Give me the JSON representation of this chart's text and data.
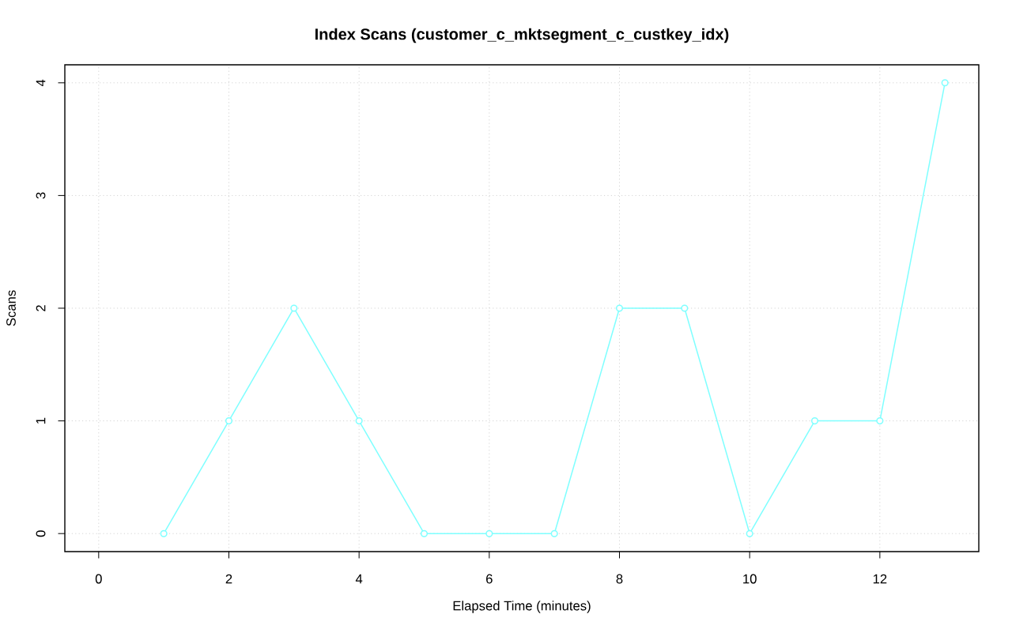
{
  "chart_data": {
    "type": "line",
    "title": "Index Scans (customer_c_mktsegment_c_custkey_idx)",
    "xlabel": "Elapsed Time (minutes)",
    "ylabel": "Scans",
    "x": [
      1,
      2,
      3,
      4,
      5,
      6,
      7,
      8,
      9,
      10,
      11,
      12,
      13
    ],
    "values": [
      0,
      1,
      2,
      1,
      0,
      0,
      0,
      2,
      2,
      0,
      1,
      1,
      4
    ],
    "color": "#7fffff",
    "xlim": [
      -0.52,
      13.52
    ],
    "ylim": [
      -0.16,
      4.16
    ],
    "xticks": [
      0,
      2,
      4,
      6,
      8,
      10,
      12
    ],
    "yticks": [
      0,
      1,
      2,
      3,
      4
    ],
    "grid": true,
    "marker": "circle",
    "line_style": "solid"
  }
}
